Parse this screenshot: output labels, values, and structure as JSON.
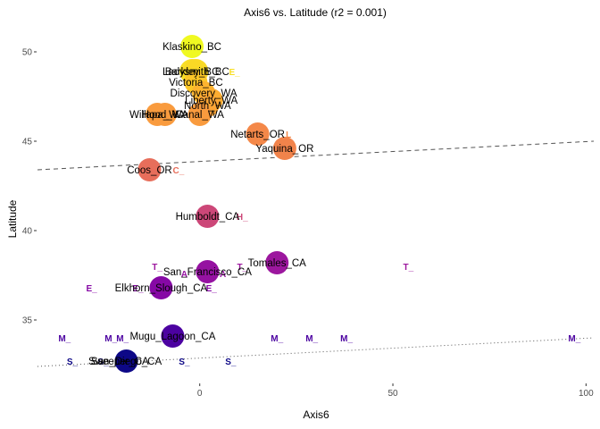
{
  "chart_data": {
    "type": "scatter",
    "title": "Axis6 vs. Latitude (r2 = 0.001)",
    "xlabel": "Axis6",
    "ylabel": "Latitude",
    "xlim": [
      -42,
      102
    ],
    "ylim": [
      31.5,
      51.5
    ],
    "xticks": [
      0,
      50,
      100
    ],
    "yticks": [
      35,
      40,
      45,
      50
    ],
    "grid": false,
    "legend": "none",
    "points": [
      {
        "label": "Klaskino_BC",
        "x": -2,
        "y": 50.3,
        "color": "#f0f921",
        "size": 13
      },
      {
        "label": "Barkley_BC",
        "x": -2,
        "y": 48.9,
        "color": "#f8df25",
        "size": 14
      },
      {
        "label": "Ladysmith_BC",
        "x": -1,
        "y": 48.9,
        "color": "#f9d925",
        "size": 14
      },
      {
        "label": "Victoria_BC",
        "x": -1,
        "y": 48.3,
        "color": "#fcc627",
        "size": 13
      },
      {
        "label": "Discovery_WA",
        "x": 1,
        "y": 47.7,
        "color": "#fdb32f",
        "size": 13
      },
      {
        "label": "Liberty_WA",
        "x": 3,
        "y": 47.3,
        "color": "#fdad31",
        "size": 13
      },
      {
        "label": "North_WA",
        "x": 2,
        "y": 47.0,
        "color": "#fca636",
        "size": 13
      },
      {
        "label": "Willapa_WA",
        "x": -11,
        "y": 46.5,
        "color": "#f99b3e",
        "size": 13
      },
      {
        "label": "Hood_WA",
        "x": -9,
        "y": 46.5,
        "color": "#f99b3e",
        "size": 13
      },
      {
        "label": "Canal_WA",
        "x": 0,
        "y": 46.5,
        "color": "#f99b3e",
        "size": 13
      },
      {
        "label": "Netarts_OR",
        "x": 15,
        "y": 45.4,
        "color": "#f48849",
        "size": 13
      },
      {
        "label": "Yaquina_OR",
        "x": 22,
        "y": 44.6,
        "color": "#f1834b",
        "size": 13
      },
      {
        "label": "Coos_OR",
        "x": -13,
        "y": 43.4,
        "color": "#e76e5b",
        "size": 13
      },
      {
        "label": "Humboldt_CA",
        "x": 2,
        "y": 40.8,
        "color": "#cc4778",
        "size": 13
      },
      {
        "label": "Tomales_CA",
        "x": 20,
        "y": 38.2,
        "color": "#9c179e",
        "size": 13
      },
      {
        "label": "San_Francisco_CA",
        "x": 2,
        "y": 37.7,
        "color": "#9512a1",
        "size": 13
      },
      {
        "label": "Elkhorn_Slough_CA",
        "x": -10,
        "y": 36.8,
        "color": "#8608a5",
        "size": 13
      },
      {
        "label": "Mugu_Lagoon_CA",
        "x": -7,
        "y": 34.1,
        "color": "#4c02a1",
        "size": 13
      },
      {
        "label": "San_Diego_CA",
        "x": -19,
        "y": 32.7,
        "color": "#0d0887",
        "size": 13
      },
      {
        "label": "Sweeper_CA",
        "x": -21,
        "y": 32.7,
        "color": "#0d0887",
        "size": 0
      }
    ],
    "mini_labels": [
      {
        "text": "E_",
        "x": 9,
        "y": 48.9,
        "color": "#f8df25"
      },
      {
        "text": "L",
        "x": -10,
        "y": 46.5,
        "color": "#f99b3e"
      },
      {
        "text": "L",
        "x": 23,
        "y": 45.4,
        "color": "#f48849"
      },
      {
        "text": "C_",
        "x": -5.5,
        "y": 43.4,
        "color": "#e76e5b"
      },
      {
        "text": "H_",
        "x": 11,
        "y": 40.8,
        "color": "#cc4778"
      },
      {
        "text": "T_",
        "x": -11,
        "y": 38.0,
        "color": "#9c179e"
      },
      {
        "text": "T_",
        "x": 11,
        "y": 38.0,
        "color": "#9c179e"
      },
      {
        "text": "T_",
        "x": 54,
        "y": 38.0,
        "color": "#9c179e"
      },
      {
        "text": "A",
        "x": -4,
        "y": 37.6,
        "color": "#9512a1"
      },
      {
        "text": "A",
        "x": 6,
        "y": 37.6,
        "color": "#9512a1"
      },
      {
        "text": "E_",
        "x": -28,
        "y": 36.8,
        "color": "#8608a5"
      },
      {
        "text": "E_",
        "x": -16,
        "y": 36.8,
        "color": "#8608a5"
      },
      {
        "text": "E_",
        "x": 3,
        "y": 36.8,
        "color": "#8608a5"
      },
      {
        "text": "M_",
        "x": -35,
        "y": 34.0,
        "color": "#4c02a1"
      },
      {
        "text": "M_",
        "x": -23,
        "y": 34.0,
        "color": "#4c02a1"
      },
      {
        "text": "M_",
        "x": -20,
        "y": 34.0,
        "color": "#4c02a1"
      },
      {
        "text": "M_",
        "x": 20,
        "y": 34.0,
        "color": "#4c02a1"
      },
      {
        "text": "M_",
        "x": 29,
        "y": 34.0,
        "color": "#4c02a1"
      },
      {
        "text": "M_",
        "x": 38,
        "y": 34.0,
        "color": "#4c02a1"
      },
      {
        "text": "M_",
        "x": 97,
        "y": 34.0,
        "color": "#4c02a1"
      },
      {
        "text": "S_",
        "x": -33,
        "y": 32.7,
        "color": "#0d0887"
      },
      {
        "text": "S_",
        "x": -25,
        "y": 32.7,
        "color": "#0d0887"
      },
      {
        "text": "S_",
        "x": -4,
        "y": 32.7,
        "color": "#0d0887"
      },
      {
        "text": "S_",
        "x": 8,
        "y": 32.7,
        "color": "#0d0887"
      }
    ],
    "trend_lines": [
      {
        "style": "dashed",
        "x": [
          -42,
          102
        ],
        "y": [
          43.4,
          45.0
        ]
      },
      {
        "style": "dotted",
        "x": [
          -42,
          102
        ],
        "y": [
          32.4,
          34.0
        ]
      }
    ]
  }
}
